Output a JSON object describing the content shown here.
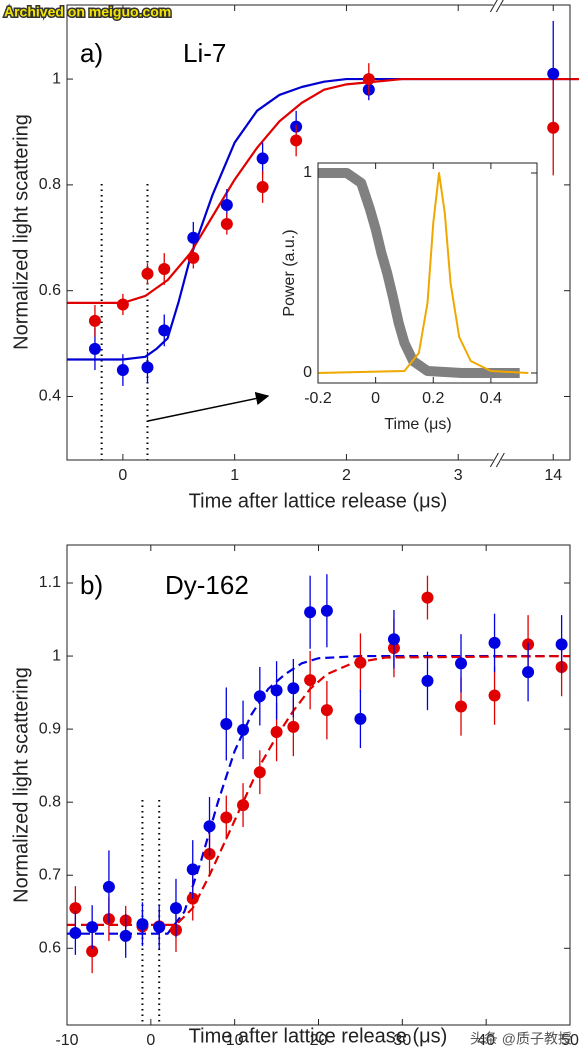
{
  "watermark": "Archived on meiguo.com",
  "credit": "头条 @质子教授",
  "chart_data": [
    {
      "type": "scatter",
      "label": "a)",
      "title": "Li-7",
      "x_label": "Time after lattice release (μs)",
      "y_label": "Normalized light scattering",
      "xlim": [
        -0.5,
        14.15
      ],
      "x_break": [
        3.35,
        13.5
      ],
      "xticks": [
        0,
        1,
        2,
        3,
        14
      ],
      "ylim": [
        0.28,
        1.14
      ],
      "yticks": [
        0.4,
        0.6,
        0.8,
        1
      ],
      "vlines": [
        -0.19,
        0.22
      ],
      "series": [
        {
          "color": "#0000d0",
          "line": "solid",
          "x": [
            -0.5,
            0,
            0.2,
            0.3,
            0.4,
            0.5,
            0.6,
            0.8,
            1.0,
            1.2,
            1.4,
            1.6,
            1.8,
            2.0,
            2.5,
            3.35,
            13.5,
            14.15
          ],
          "values": [
            0.47,
            0.47,
            0.475,
            0.49,
            0.51,
            0.58,
            0.66,
            0.78,
            0.88,
            0.94,
            0.97,
            0.985,
            0.995,
            1.0,
            1.0,
            1.0,
            1.0,
            1.0
          ]
        },
        {
          "color": "#e00000",
          "line": "solid",
          "x": [
            -0.5,
            0,
            0.2,
            0.4,
            0.6,
            0.8,
            1.0,
            1.2,
            1.4,
            1.6,
            1.8,
            2.0,
            2.5,
            3.35,
            13.5,
            14.15
          ],
          "values": [
            0.577,
            0.577,
            0.59,
            0.62,
            0.67,
            0.74,
            0.81,
            0.87,
            0.92,
            0.955,
            0.98,
            0.99,
            1.0,
            1.0,
            1.0,
            1.0
          ]
        },
        {
          "color": "#0000e0",
          "marker": "circle",
          "x": [
            -0.25,
            0,
            0.22,
            0.37,
            0.63,
            0.93,
            1.25,
            1.55,
            2.2,
            14
          ],
          "values": [
            0.49,
            0.45,
            0.455,
            0.525,
            0.7,
            0.762,
            0.85,
            0.91,
            0.98,
            1.01
          ],
          "errors": [
            0.04,
            0.03,
            0.03,
            0.03,
            0.03,
            0.03,
            0.03,
            0.03,
            0.02,
            0.1
          ]
        },
        {
          "color": "#e00000",
          "marker": "circle",
          "x": [
            -0.25,
            0,
            0.22,
            0.37,
            0.63,
            0.93,
            1.25,
            1.55,
            2.2,
            14
          ],
          "values": [
            0.543,
            0.574,
            0.632,
            0.641,
            0.662,
            0.726,
            0.796,
            0.884,
            1.0,
            0.908
          ],
          "errors": [
            0.03,
            0.02,
            0.02,
            0.03,
            0.02,
            0.02,
            0.03,
            0.03,
            0.03,
            0.09
          ]
        }
      ]
    },
    {
      "type": "line",
      "x_label": "Time (μs)",
      "y_label": "Power (a.u.)",
      "xlim": [
        -0.2,
        0.56
      ],
      "xticks": [
        -0.2,
        0,
        0.2,
        0.4
      ],
      "ylim": [
        -0.05,
        1.05
      ],
      "yticks": [
        0,
        1
      ],
      "series": [
        {
          "color": "#808080",
          "width": 10,
          "line": "solid",
          "x": [
            -0.2,
            -0.1,
            -0.05,
            -0.02,
            0,
            0.02,
            0.04,
            0.06,
            0.08,
            0.1,
            0.13,
            0.18,
            0.3,
            0.5
          ],
          "values": [
            1,
            1,
            0.95,
            0.82,
            0.72,
            0.6,
            0.5,
            0.38,
            0.25,
            0.15,
            0.06,
            0.01,
            0,
            0
          ]
        },
        {
          "color": "#f0a800",
          "width": 2,
          "line": "solid",
          "x": [
            -0.2,
            0.1,
            0.15,
            0.18,
            0.2,
            0.22,
            0.24,
            0.26,
            0.29,
            0.33,
            0.4,
            0.53
          ],
          "values": [
            0,
            0.01,
            0.1,
            0.35,
            0.75,
            1.0,
            0.8,
            0.45,
            0.18,
            0.06,
            0.01,
            0
          ]
        }
      ]
    },
    {
      "type": "scatter",
      "label": "b)",
      "title": "Dy-162",
      "x_label": "Time after lattice release (μs)",
      "y_label": "Normalized light scattering",
      "xlim": [
        -10,
        50
      ],
      "xticks": [
        -10,
        0,
        10,
        20,
        30,
        40,
        50
      ],
      "ylim": [
        0.495,
        1.152
      ],
      "yticks": [
        0.6,
        0.7,
        0.8,
        0.9,
        1,
        1.1
      ],
      "vlines": [
        -1,
        1
      ],
      "series": [
        {
          "color": "#0000e0",
          "line": "dashed",
          "x": [
            -10,
            2,
            4,
            6,
            8,
            10,
            12,
            14,
            16,
            18,
            20,
            25,
            50
          ],
          "values": [
            0.62,
            0.62,
            0.65,
            0.72,
            0.8,
            0.87,
            0.92,
            0.955,
            0.975,
            0.99,
            0.997,
            1.0,
            1.0
          ]
        },
        {
          "color": "#e00000",
          "line": "dashed",
          "x": [
            -10,
            3,
            5,
            7,
            9,
            11,
            13,
            15,
            17,
            19,
            21,
            24,
            28,
            50
          ],
          "values": [
            0.632,
            0.632,
            0.655,
            0.7,
            0.75,
            0.8,
            0.85,
            0.89,
            0.925,
            0.955,
            0.975,
            0.99,
            0.998,
            1.0
          ]
        },
        {
          "color": "#e00000",
          "marker": "circle",
          "x": [
            -9,
            -7,
            -5,
            -3,
            -1,
            1,
            3,
            5,
            7,
            9,
            11,
            13,
            15,
            17,
            19,
            21,
            25,
            29,
            33,
            37,
            41,
            45,
            49
          ],
          "values": [
            0.655,
            0.596,
            0.64,
            0.638,
            0.63,
            0.63,
            0.625,
            0.668,
            0.729,
            0.779,
            0.796,
            0.841,
            0.896,
            0.903,
            0.967,
            0.926,
            0.991,
            1.011,
            1.08,
            0.931,
            0.946,
            1.016,
            0.985
          ],
          "errors": [
            0.03,
            0.03,
            0.03,
            0.02,
            0.02,
            0.02,
            0.03,
            0.03,
            0.03,
            0.03,
            0.03,
            0.03,
            0.04,
            0.04,
            0.04,
            0.04,
            0.04,
            0.04,
            0.03,
            0.04,
            0.04,
            0.04,
            0.04
          ]
        },
        {
          "color": "#0000e0",
          "marker": "circle",
          "x": [
            -9,
            -7,
            -5,
            -3,
            -1,
            1,
            3,
            5,
            7,
            9,
            11,
            13,
            15,
            17,
            19,
            21,
            25,
            29,
            33,
            37,
            41,
            45,
            49
          ],
          "values": [
            0.621,
            0.629,
            0.684,
            0.617,
            0.633,
            0.629,
            0.655,
            0.708,
            0.767,
            0.907,
            0.899,
            0.945,
            0.953,
            0.956,
            1.06,
            1.062,
            0.914,
            1.023,
            0.966,
            0.99,
            1.018,
            0.978,
            1.016
          ],
          "errors": [
            0.03,
            0.03,
            0.05,
            0.03,
            0.03,
            0.03,
            0.04,
            0.04,
            0.04,
            0.05,
            0.04,
            0.04,
            0.04,
            0.04,
            0.05,
            0.05,
            0.04,
            0.04,
            0.04,
            0.04,
            0.04,
            0.04,
            0.04
          ]
        }
      ]
    }
  ]
}
